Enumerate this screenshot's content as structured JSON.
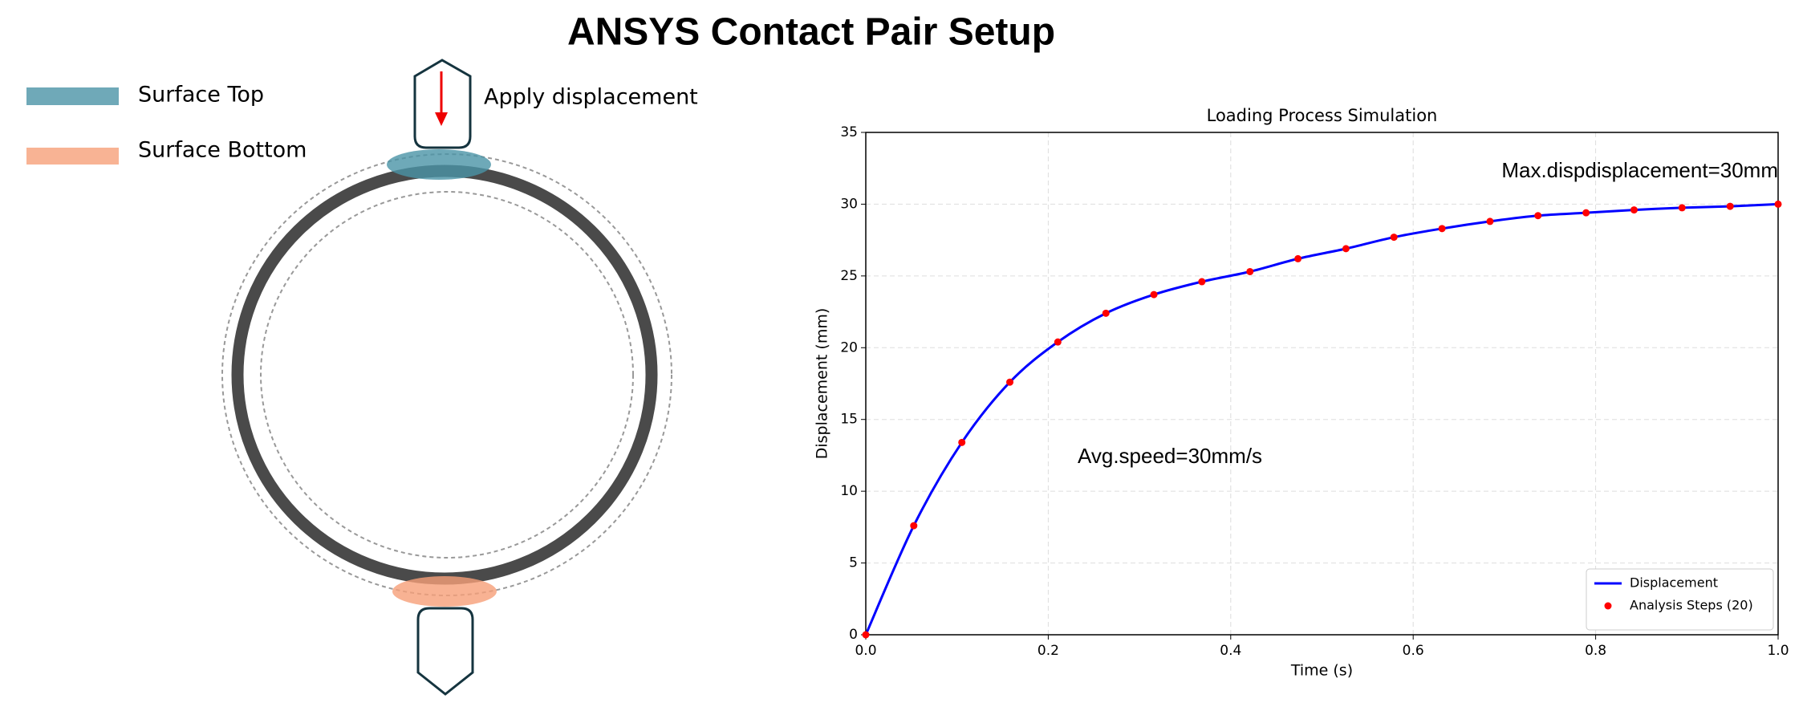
{
  "title": "ANSYS Contact Pair Setup",
  "diagram": {
    "legend": [
      "Surface Top",
      "Surface Bottom"
    ],
    "label": "Apply displacement"
  },
  "chart_data": {
    "type": "line",
    "title": "Loading Process Simulation",
    "xlabel": "Time (s)",
    "ylabel": "Displacement (mm)",
    "x": [
      0,
      0.0526,
      0.1053,
      0.1579,
      0.2105,
      0.2632,
      0.3158,
      0.3684,
      0.4211,
      0.4737,
      0.5263,
      0.5789,
      0.6316,
      0.6842,
      0.7368,
      0.7895,
      0.8421,
      0.8947,
      0.9474,
      1
    ],
    "series": [
      {
        "name": "Displacement",
        "color": "#0000ff",
        "style": "line",
        "values": [
          0,
          7.6,
          13.4,
          17.6,
          20.4,
          22.4,
          23.7,
          24.6,
          25.3,
          26.2,
          26.9,
          27.7,
          28.3,
          28.8,
          29.2,
          29.4,
          29.6,
          29.75,
          29.85,
          30
        ]
      },
      {
        "name": "Analysis Steps (20)",
        "color": "#ff0000",
        "style": "scatter",
        "values": [
          0,
          7.6,
          13.4,
          17.6,
          20.4,
          22.4,
          23.7,
          24.6,
          25.3,
          26.2,
          26.9,
          27.7,
          28.3,
          28.8,
          29.2,
          29.4,
          29.6,
          29.75,
          29.85,
          30
        ]
      }
    ],
    "xlim": [
      0,
      1
    ],
    "ylim": [
      0,
      35
    ],
    "xticks": [
      {
        "value": 0,
        "label": "0.0"
      },
      0.2,
      0.4,
      0.6,
      0.8,
      {
        "value": 1,
        "label": "1.0"
      }
    ],
    "yticks": [
      0,
      5,
      10,
      15,
      20,
      25,
      30,
      35
    ],
    "grid": true,
    "legend": "lower right",
    "annotations": [
      "Max.dispdisplacement=30mm",
      "Avg.speed=30mm/s"
    ]
  }
}
